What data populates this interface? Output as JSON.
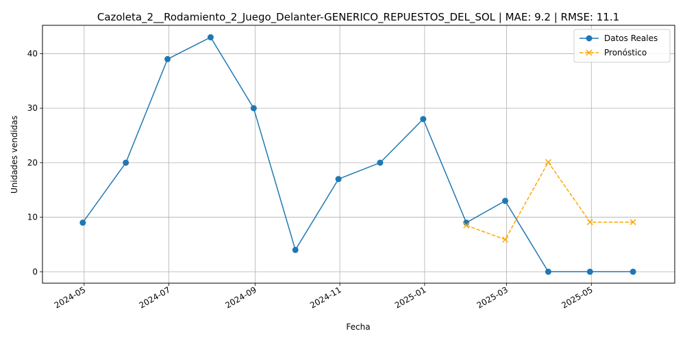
{
  "chart_data": {
    "type": "line",
    "title": "Cazoleta_2__Rodamiento_2_Juego_Delanter-GENERICO_REPUESTOS_DEL_SOL | MAE: 9.2 | RMSE: 11.1",
    "xlabel": "Fecha",
    "ylabel": "Unidades vendidas",
    "xlim": [
      "2024-04-01",
      "2025-06-30"
    ],
    "ylim": [
      -2.1,
      45.2
    ],
    "x_ticks": [
      "2024-05",
      "2024-07",
      "2024-09",
      "2024-11",
      "2025-01",
      "2025-03",
      "2025-05"
    ],
    "y_ticks": [
      0,
      10,
      20,
      30,
      40
    ],
    "grid": true,
    "legend_position": "top-right",
    "series": [
      {
        "name": "Datos Reales",
        "color": "#1f77b4",
        "style": "solid",
        "marker": "circle",
        "x": [
          "2024-04-30",
          "2024-05-31",
          "2024-06-30",
          "2024-07-31",
          "2024-08-31",
          "2024-09-30",
          "2024-10-31",
          "2024-11-30",
          "2024-12-31",
          "2025-01-31",
          "2025-02-28",
          "2025-03-31",
          "2025-04-30",
          "2025-05-31"
        ],
        "values": [
          9,
          20,
          39,
          43,
          30,
          4,
          17,
          20,
          28,
          9,
          13,
          0,
          0,
          0
        ]
      },
      {
        "name": "Pronóstico",
        "color": "#ffa500",
        "style": "dashed",
        "marker": "x",
        "x": [
          "2025-01-31",
          "2025-02-28",
          "2025-03-31",
          "2025-04-30",
          "2025-05-31"
        ],
        "values": [
          8.5,
          5.9,
          20.1,
          9.1,
          9.1
        ]
      }
    ]
  }
}
